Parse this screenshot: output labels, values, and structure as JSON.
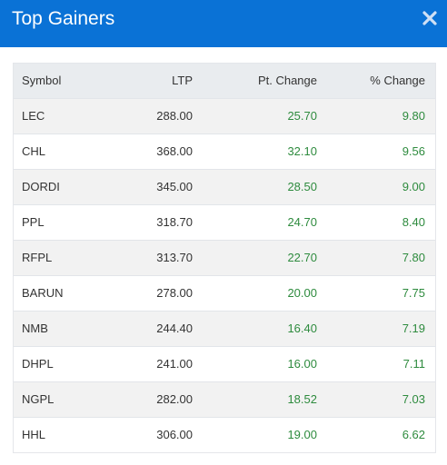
{
  "modal": {
    "title": "Top Gainers",
    "close_icon": "close-icon"
  },
  "table": {
    "headers": [
      "Symbol",
      "LTP",
      "Pt. Change",
      "% Change"
    ],
    "rows": [
      {
        "symbol": "LEC",
        "ltp": "288.00",
        "pt_change": "25.70",
        "pct_change": "9.80"
      },
      {
        "symbol": "CHL",
        "ltp": "368.00",
        "pt_change": "32.10",
        "pct_change": "9.56"
      },
      {
        "symbol": "DORDI",
        "ltp": "345.00",
        "pt_change": "28.50",
        "pct_change": "9.00"
      },
      {
        "symbol": "PPL",
        "ltp": "318.70",
        "pt_change": "24.70",
        "pct_change": "8.40"
      },
      {
        "symbol": "RFPL",
        "ltp": "313.70",
        "pt_change": "22.70",
        "pct_change": "7.80"
      },
      {
        "symbol": "BARUN",
        "ltp": "278.00",
        "pt_change": "20.00",
        "pct_change": "7.75"
      },
      {
        "symbol": "NMB",
        "ltp": "244.40",
        "pt_change": "16.40",
        "pct_change": "7.19"
      },
      {
        "symbol": "DHPL",
        "ltp": "241.00",
        "pt_change": "16.00",
        "pct_change": "7.11"
      },
      {
        "symbol": "NGPL",
        "ltp": "282.00",
        "pt_change": "18.52",
        "pct_change": "7.03"
      },
      {
        "symbol": "HHL",
        "ltp": "306.00",
        "pt_change": "19.00",
        "pct_change": "6.62"
      }
    ]
  },
  "colors": {
    "header_bg": "#0a72d6",
    "positive": "#2e8b3e"
  }
}
